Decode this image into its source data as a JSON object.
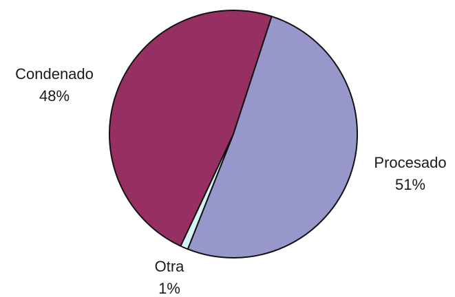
{
  "chart_data": {
    "type": "pie",
    "title": "",
    "slices": [
      {
        "label": "Procesado",
        "value": 51,
        "value_label": "51%",
        "color": "#9797cb"
      },
      {
        "label": "Otra",
        "value": 1,
        "value_label": "1%",
        "color": "#d6f3f6"
      },
      {
        "label": "Condenado",
        "value": 48,
        "value_label": "48%",
        "color": "#962f62"
      }
    ],
    "start_angle_deg": 18,
    "direction": "clockwise",
    "legend": "none",
    "labels_position": "outside"
  }
}
